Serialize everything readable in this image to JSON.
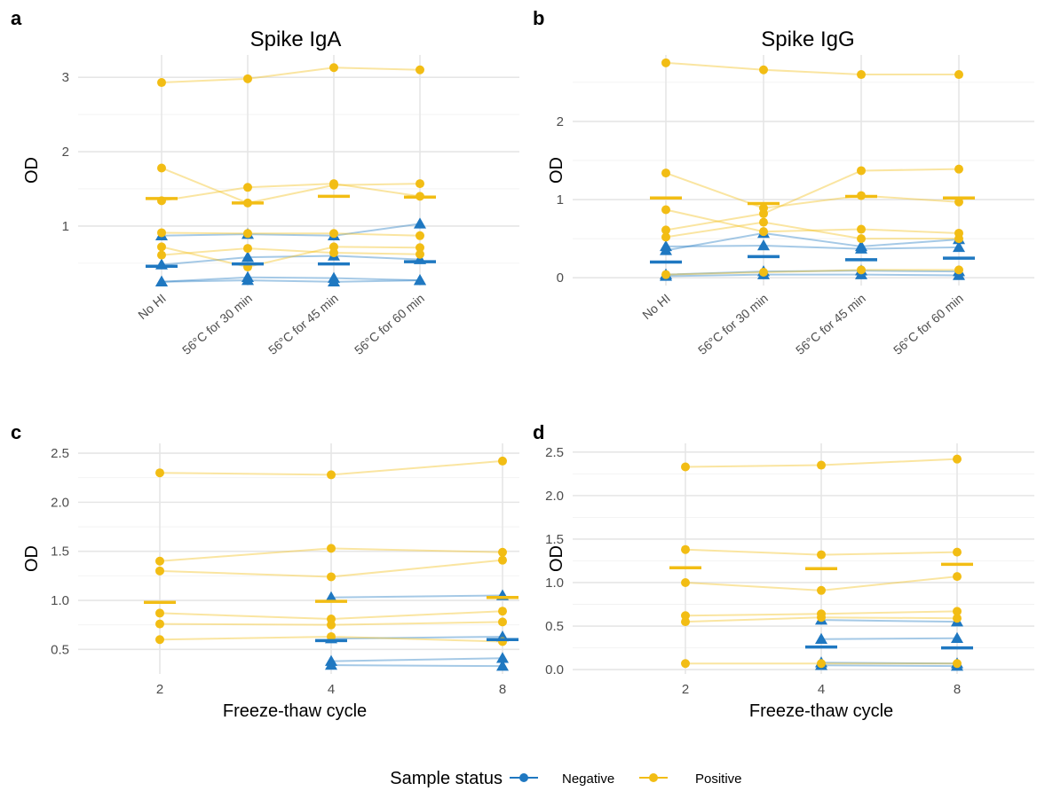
{
  "colors": {
    "Negative": "#1f78c1",
    "Positive": "#f2bd14"
  },
  "legend": {
    "title": "Sample status",
    "items": [
      {
        "label": "Negative",
        "color": "#1f78c1"
      },
      {
        "label": "Positive",
        "color": "#f2bd14"
      }
    ]
  },
  "chart_data": [
    {
      "panel": "a",
      "type": "line",
      "title": "Spike IgA",
      "xlabel": "",
      "ylabel": "OD",
      "categories": [
        "No HI",
        "56°C for 30 min",
        "56°C for 45 min",
        "56°C for 60 min"
      ],
      "yticks": [
        1,
        2,
        3
      ],
      "ylim": [
        0.2,
        3.3
      ],
      "grid": true,
      "lines": [
        {
          "status": "Negative",
          "values": [
            0.25,
            0.27,
            0.25,
            0.27
          ]
        },
        {
          "status": "Negative",
          "values": [
            0.25,
            0.31,
            0.3,
            0.27
          ]
        },
        {
          "status": "Negative",
          "values": [
            0.48,
            0.58,
            0.6,
            0.55
          ]
        },
        {
          "status": "Negative",
          "values": [
            0.87,
            0.89,
            0.87,
            1.03
          ]
        },
        {
          "status": "Positive",
          "values": [
            0.61,
            0.7,
            0.64,
            0.62
          ]
        },
        {
          "status": "Positive",
          "values": [
            0.72,
            0.45,
            0.72,
            0.71
          ]
        },
        {
          "status": "Positive",
          "values": [
            0.91,
            0.9,
            0.9,
            0.87
          ]
        },
        {
          "status": "Positive",
          "values": [
            1.34,
            1.52,
            1.57,
            1.4
          ]
        },
        {
          "status": "Positive",
          "values": [
            1.78,
            1.31,
            1.55,
            1.57
          ]
        },
        {
          "status": "Positive",
          "values": [
            2.93,
            2.98,
            3.13,
            3.1
          ]
        }
      ],
      "medians": [
        {
          "status": "Negative",
          "values": [
            0.46,
            0.49,
            0.49,
            0.52
          ]
        },
        {
          "status": "Positive",
          "values": [
            1.37,
            1.31,
            1.4,
            1.39
          ]
        }
      ]
    },
    {
      "panel": "b",
      "type": "line",
      "title": "Spike IgG",
      "xlabel": "",
      "ylabel": "OD",
      "categories": [
        "No HI",
        "56°C for 30 min",
        "56°C for 45 min",
        "56°C for 60 min"
      ],
      "yticks": [
        0,
        1,
        2
      ],
      "ylim": [
        -0.1,
        2.85
      ],
      "grid": true,
      "lines": [
        {
          "status": "Negative",
          "values": [
            0.02,
            0.04,
            0.04,
            0.03
          ]
        },
        {
          "status": "Negative",
          "values": [
            0.04,
            0.08,
            0.09,
            0.08
          ]
        },
        {
          "status": "Negative",
          "values": [
            0.35,
            0.57,
            0.4,
            0.49
          ]
        },
        {
          "status": "Negative",
          "values": [
            0.4,
            0.41,
            0.37,
            0.39
          ]
        },
        {
          "status": "Positive",
          "values": [
            0.04,
            0.07,
            0.1,
            0.1
          ]
        },
        {
          "status": "Positive",
          "values": [
            0.52,
            0.71,
            0.5,
            0.5
          ]
        },
        {
          "status": "Positive",
          "values": [
            0.61,
            0.82,
            1.37,
            1.39
          ]
        },
        {
          "status": "Positive",
          "values": [
            0.87,
            0.59,
            0.62,
            0.57
          ]
        },
        {
          "status": "Positive",
          "values": [
            1.34,
            0.89,
            1.05,
            0.97
          ]
        },
        {
          "status": "Positive",
          "values": [
            2.75,
            2.66,
            2.6,
            2.6
          ]
        }
      ],
      "medians": [
        {
          "status": "Negative",
          "values": [
            0.2,
            0.27,
            0.23,
            0.25
          ]
        },
        {
          "status": "Positive",
          "values": [
            1.02,
            0.95,
            1.04,
            1.02
          ]
        }
      ]
    },
    {
      "panel": "c",
      "type": "line",
      "title": "",
      "xlabel": "Freeze-thaw cycle",
      "ylabel": "OD",
      "categories": [
        "2",
        "4",
        "8"
      ],
      "yticks": [
        0.5,
        1.0,
        1.5,
        2.0,
        2.5
      ],
      "ytick_labels": [
        "0.5",
        "1.0",
        "1.5",
        "2.0",
        "2.5"
      ],
      "ylim": [
        0.25,
        2.6
      ],
      "grid": true,
      "lines": [
        {
          "status": "Negative",
          "values": [
            null,
            0.34,
            0.33
          ]
        },
        {
          "status": "Negative",
          "values": [
            null,
            0.38,
            0.41
          ]
        },
        {
          "status": "Negative",
          "values": [
            null,
            0.61,
            0.63
          ]
        },
        {
          "status": "Negative",
          "values": [
            null,
            1.03,
            1.05
          ]
        },
        {
          "status": "Positive",
          "values": [
            0.6,
            0.63,
            0.58
          ]
        },
        {
          "status": "Positive",
          "values": [
            0.76,
            0.75,
            0.78
          ]
        },
        {
          "status": "Positive",
          "values": [
            0.87,
            0.81,
            0.89
          ]
        },
        {
          "status": "Positive",
          "values": [
            1.3,
            1.24,
            1.41
          ]
        },
        {
          "status": "Positive",
          "values": [
            1.4,
            1.53,
            1.49
          ]
        },
        {
          "status": "Positive",
          "values": [
            2.3,
            2.28,
            2.42
          ]
        }
      ],
      "medians": [
        {
          "status": "Negative",
          "values": [
            null,
            0.59,
            0.6
          ]
        },
        {
          "status": "Positive",
          "values": [
            0.98,
            0.99,
            1.03
          ]
        }
      ]
    },
    {
      "panel": "d",
      "type": "line",
      "title": "",
      "xlabel": "Freeze-thaw cycle",
      "ylabel": "OD",
      "categories": [
        "2",
        "4",
        "8"
      ],
      "yticks": [
        0.0,
        0.5,
        1.0,
        1.5,
        2.0,
        2.5
      ],
      "ytick_labels": [
        "0.0",
        "0.5",
        "1.0",
        "1.5",
        "2.0",
        "2.5"
      ],
      "ylim": [
        -0.05,
        2.6
      ],
      "grid": true,
      "lines": [
        {
          "status": "Negative",
          "values": [
            null,
            0.05,
            0.04
          ]
        },
        {
          "status": "Negative",
          "values": [
            null,
            0.08,
            0.07
          ]
        },
        {
          "status": "Negative",
          "values": [
            null,
            0.35,
            0.36
          ]
        },
        {
          "status": "Negative",
          "values": [
            null,
            0.57,
            0.55
          ]
        },
        {
          "status": "Positive",
          "values": [
            0.07,
            0.07,
            0.07
          ]
        },
        {
          "status": "Positive",
          "values": [
            0.55,
            0.6,
            0.59
          ]
        },
        {
          "status": "Positive",
          "values": [
            0.62,
            0.64,
            0.67
          ]
        },
        {
          "status": "Positive",
          "values": [
            1.0,
            0.91,
            1.07
          ]
        },
        {
          "status": "Positive",
          "values": [
            1.38,
            1.32,
            1.35
          ]
        },
        {
          "status": "Positive",
          "values": [
            2.33,
            2.35,
            2.42
          ]
        }
      ],
      "medians": [
        {
          "status": "Negative",
          "values": [
            null,
            0.26,
            0.25
          ]
        },
        {
          "status": "Positive",
          "values": [
            1.17,
            1.16,
            1.21
          ]
        }
      ]
    }
  ]
}
